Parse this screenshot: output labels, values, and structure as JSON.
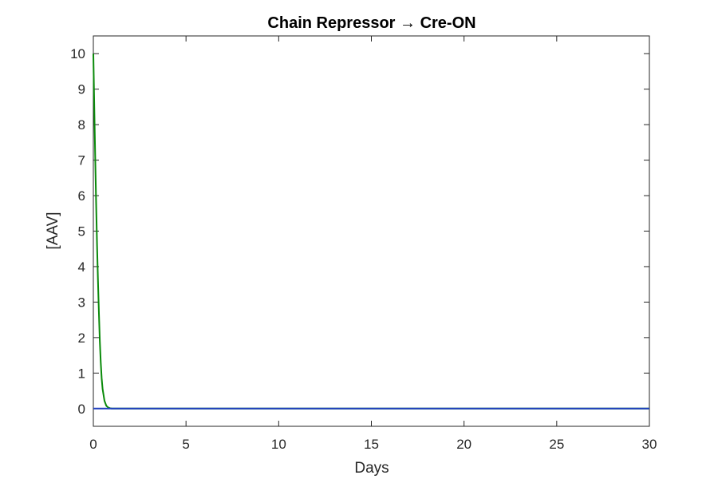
{
  "chart_data": {
    "type": "line",
    "title": "Chain Repressor → Cre-ON",
    "xlabel": "Days",
    "ylabel": "[AAV]",
    "xlim": [
      0,
      30
    ],
    "ylim": [
      -0.5,
      10.5
    ],
    "xticks": [
      0,
      5,
      10,
      15,
      20,
      25,
      30
    ],
    "yticks": [
      0,
      1,
      2,
      3,
      4,
      5,
      6,
      7,
      8,
      9,
      10
    ],
    "grid": false,
    "series": [
      {
        "color": "#0a8a0a",
        "x": [
          0,
          0.05,
          0.1,
          0.15,
          0.2,
          0.25,
          0.3,
          0.35,
          0.4,
          0.45,
          0.5,
          0.6,
          0.7,
          0.8,
          0.9,
          1.0,
          30
        ],
        "y": [
          10,
          8.5,
          7.1,
          5.8,
          4.6,
          3.6,
          2.7,
          1.9,
          1.3,
          0.85,
          0.55,
          0.22,
          0.08,
          0.03,
          0.01,
          0,
          0
        ]
      },
      {
        "color": "#1f3fbf",
        "x": [
          0,
          30
        ],
        "y": [
          0,
          0
        ]
      }
    ]
  }
}
